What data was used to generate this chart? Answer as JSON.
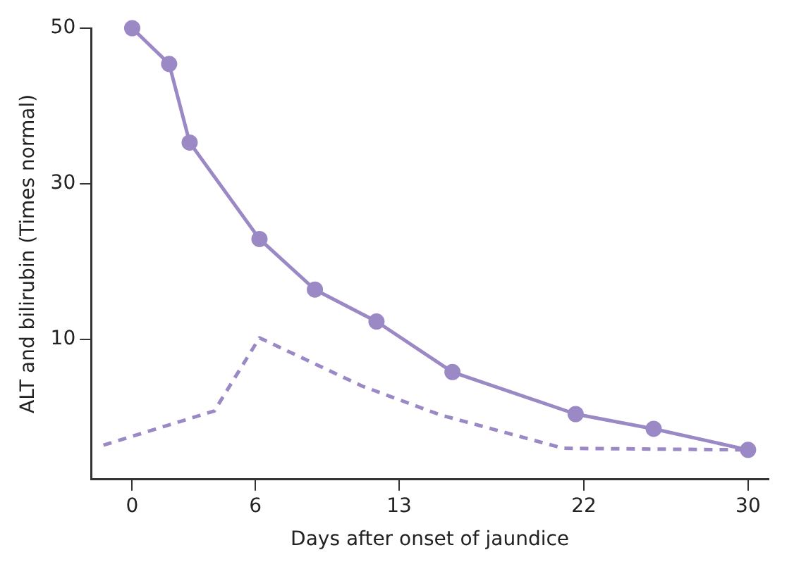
{
  "chart_data": {
    "type": "line",
    "xlabel": "Days after onset of jaundice",
    "ylabel": "ALT and bilirubin (Times normal)",
    "xlim": [
      -2,
      31
    ],
    "xticks": [
      0,
      6,
      13,
      22,
      30
    ],
    "ylim": [
      -8,
      50
    ],
    "yticks": [
      10,
      30,
      50
    ],
    "grid": false,
    "legend": false,
    "series": [
      {
        "color": "#9b89c6",
        "marker": "circle",
        "line_style": "solid",
        "x": [
          0,
          1.8,
          2.8,
          6.2,
          8.9,
          11.9,
          15.6,
          21.6,
          25.4,
          30
        ],
        "values": [
          50,
          45.4,
          35.3,
          22.9,
          16.4,
          12.3,
          5.8,
          0.4,
          -1.5,
          -4.2
        ]
      },
      {
        "color": "#9b89c6",
        "marker": "none",
        "line_style": "dashed",
        "x": [
          -1.4,
          4,
          6.2,
          11.2,
          15,
          21,
          30
        ],
        "values": [
          -3.6,
          0.8,
          10.2,
          4,
          0.3,
          -4,
          -4.2
        ]
      }
    ]
  }
}
